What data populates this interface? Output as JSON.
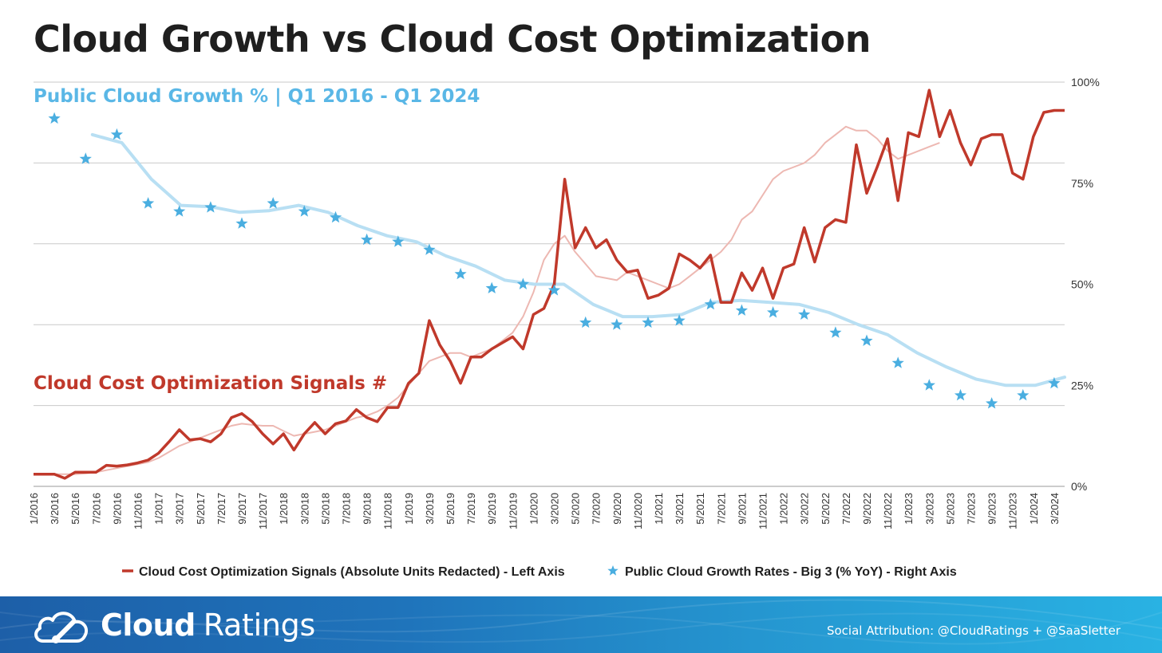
{
  "header": {
    "title": "Cloud Growth vs Cloud Cost Optimization"
  },
  "footer": {
    "brand_strong": "Cloud",
    "brand_light": "Ratings",
    "logo_icon": "cloud-gauge-icon",
    "attribution": "Social Attribution: @CloudRatings + @SaaSletter"
  },
  "colors": {
    "signals": "#c0392b",
    "signals_trend": "#edb8b2",
    "growth": "#4aaee0",
    "growth_trend": "#b8dff3",
    "grid": "#c9c9c9"
  },
  "chart_data": {
    "type": "line",
    "series_labels": {
      "growth": "Public Cloud Growth % | Q1 2016 - Q1 2024",
      "signals": "Cloud Cost Optimization Signals #"
    },
    "legend_position": "bottom",
    "legend": [
      {
        "name": "Cloud Cost Optimization Signals (Absolute Units Redacted) - Left Axis",
        "marker": "line",
        "color": "#c0392b"
      },
      {
        "name": "Public Cloud Growth Rates - Big 3 (% YoY) - Right Axis",
        "marker": "star",
        "color": "#4aaee0"
      }
    ],
    "right_axis": {
      "ticks": [
        "0%",
        "25%",
        "50%",
        "75%",
        "100%"
      ],
      "range": [
        0,
        100
      ]
    },
    "left_axis": {
      "range": [
        0,
        100
      ],
      "labels_shown": false
    },
    "grid": true,
    "x_tick_labels": [
      "1/2016",
      "3/2016",
      "5/2016",
      "7/2016",
      "9/2016",
      "11/2016",
      "1/2017",
      "3/2017",
      "5/2017",
      "7/2017",
      "9/2017",
      "11/2017",
      "1/2018",
      "3/2018",
      "5/2018",
      "7/2018",
      "9/2018",
      "11/2018",
      "1/2019",
      "3/2019",
      "5/2019",
      "7/2019",
      "9/2019",
      "11/2019",
      "1/2020",
      "3/2020",
      "5/2020",
      "7/2020",
      "9/2020",
      "11/2020",
      "1/2021",
      "3/2021",
      "5/2021",
      "7/2021",
      "9/2021",
      "11/2021",
      "1/2022",
      "3/2022",
      "5/2022",
      "7/2022",
      "9/2022",
      "11/2022",
      "1/2023",
      "3/2023",
      "5/2023",
      "7/2023",
      "9/2023",
      "11/2023",
      "1/2024",
      "3/2024"
    ],
    "signals_monthly": [
      3,
      3,
      3,
      2,
      3.5,
      3.5,
      3.5,
      5.2,
      5,
      5.3,
      5.8,
      6.5,
      8.2,
      11,
      14,
      11.5,
      11.8,
      11,
      13,
      17,
      18,
      16,
      13,
      10.5,
      13,
      9,
      13,
      15.8,
      13,
      15.5,
      16.2,
      19,
      17,
      16,
      19.5,
      19.5,
      25.5,
      28,
      41,
      35,
      31,
      25.5,
      32,
      32,
      34,
      35.5,
      37,
      34,
      42.5,
      44,
      50,
      76,
      59,
      64,
      59,
      61,
      56,
      53,
      53.5,
      46.5,
      47.3,
      49,
      57.5,
      56,
      54,
      57.2,
      45.5,
      45.5,
      52.8,
      48.5,
      54,
      46.5,
      54,
      55,
      64,
      55.5,
      64,
      66,
      65.3,
      84.5,
      72.5,
      79,
      86,
      70.7,
      87.5,
      86.5,
      98,
      86.5,
      93,
      85,
      79.5,
      86,
      87,
      87,
      77.5,
      76,
      86.5,
      92.5,
      93,
      93
    ],
    "signals_trend": [
      3,
      3,
      3,
      3,
      3,
      3.2,
      3.5,
      4,
      4.5,
      5,
      5.5,
      6,
      7,
      8.5,
      10,
      11,
      12,
      13,
      14,
      15,
      15.5,
      15.2,
      15,
      15,
      13.7,
      12.5,
      13,
      13.5,
      14,
      15,
      16,
      17,
      17.5,
      18.5,
      20,
      22,
      25,
      28,
      31,
      32,
      33,
      33,
      32,
      33,
      34,
      36,
      38,
      42,
      48,
      56,
      60,
      62,
      58,
      55,
      52,
      51.5,
      51,
      53,
      52,
      51,
      50,
      49,
      50,
      52,
      54,
      56,
      58,
      61,
      66,
      68,
      72,
      76,
      78,
      79,
      80,
      82,
      85,
      87,
      89,
      88,
      88,
      86,
      83,
      81,
      82,
      83,
      84,
      85
    ]
  }
}
